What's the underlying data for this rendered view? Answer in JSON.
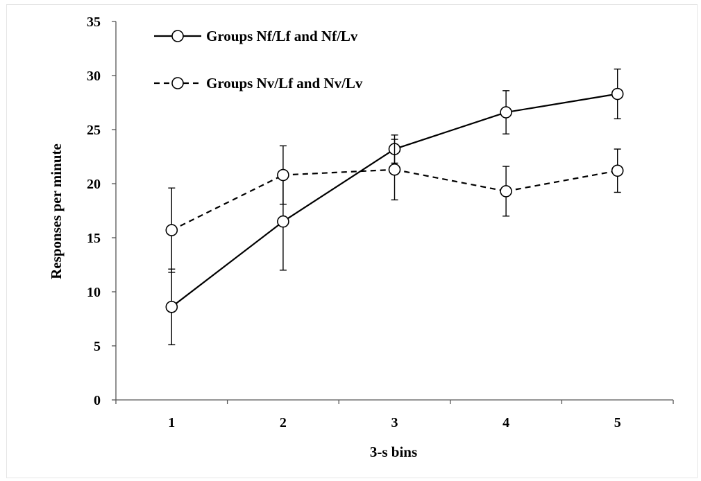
{
  "chart_data": {
    "type": "line",
    "x": [
      1,
      2,
      3,
      4,
      5
    ],
    "xlabel": "3-s bins",
    "ylabel": "Responses per minute",
    "ylim": [
      0,
      35
    ],
    "yticks": [
      0,
      5,
      10,
      15,
      20,
      25,
      30,
      35
    ],
    "xtick_labels": [
      "1",
      "2",
      "3",
      "4",
      "5"
    ],
    "grid": false,
    "legend": "top-left",
    "series": [
      {
        "name": "Groups Nf/Lf and Nf/Lv",
        "style": "solid",
        "marker": "open-circle",
        "color": "#000000",
        "values": [
          8.6,
          16.5,
          23.2,
          26.6,
          28.3
        ],
        "error": [
          3.5,
          4.5,
          1.3,
          2.0,
          2.3
        ]
      },
      {
        "name": "Groups Nv/Lf and Nv/Lv",
        "style": "dashed",
        "marker": "open-circle",
        "color": "#000000",
        "values": [
          15.7,
          20.8,
          21.3,
          19.3,
          21.2
        ],
        "error": [
          3.9,
          2.7,
          2.8,
          2.3,
          2.0
        ]
      }
    ]
  }
}
